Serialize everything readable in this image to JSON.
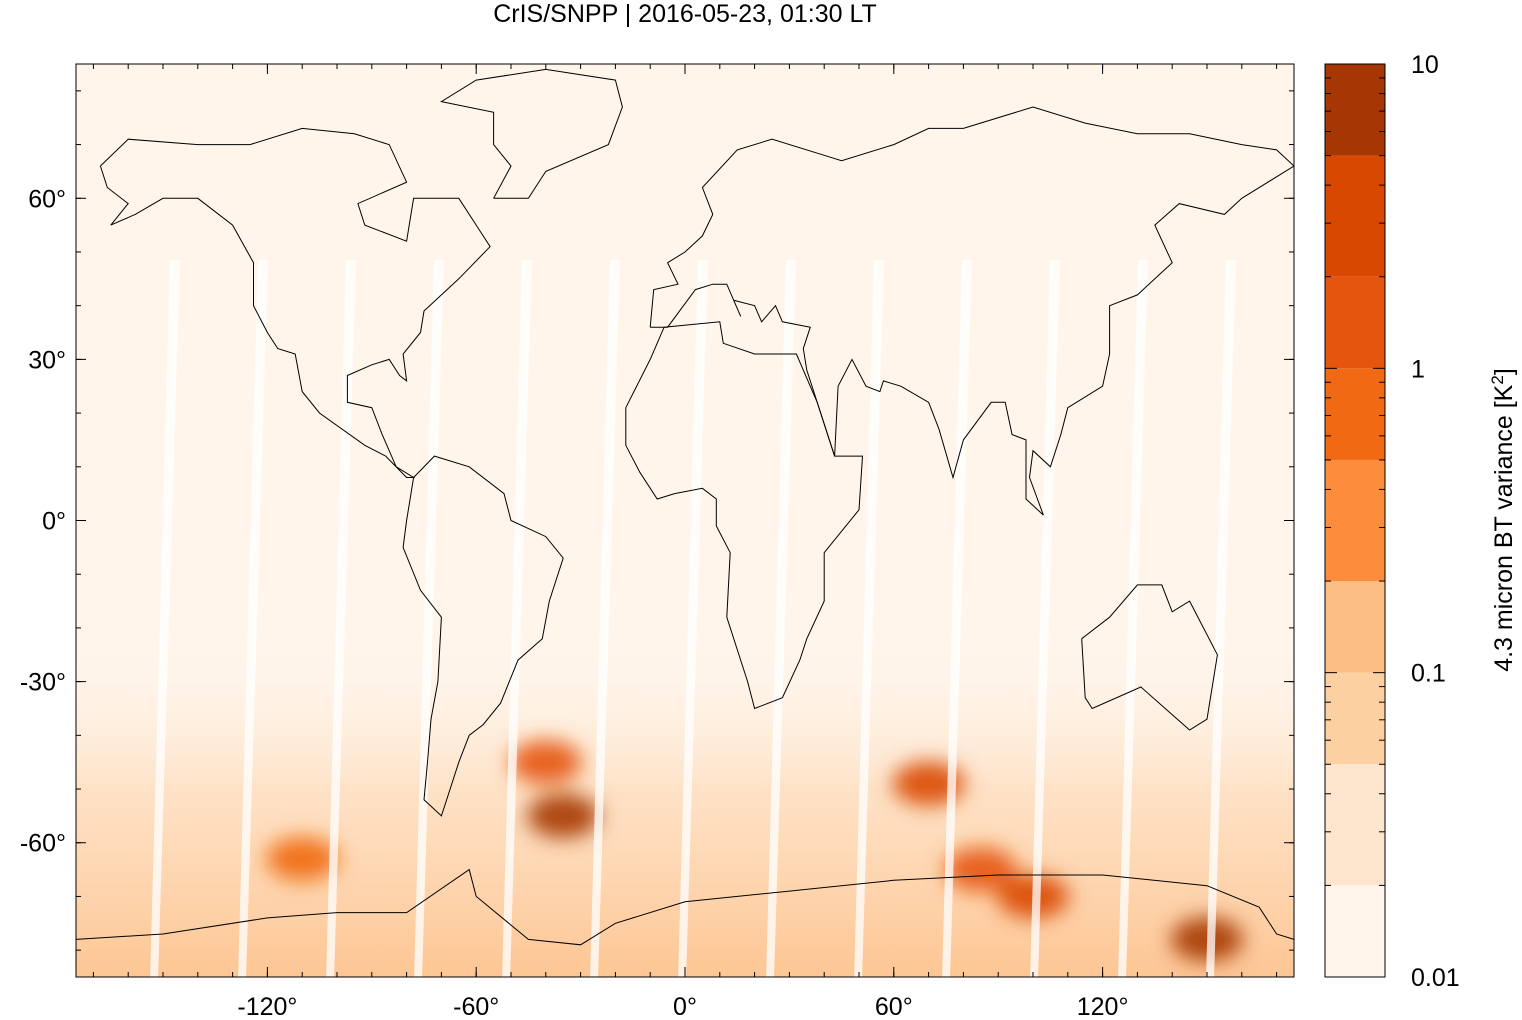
{
  "chart_data": {
    "type": "heatmap",
    "title": "CrIS/SNPP | 2016-05-23, 01:30 LT",
    "projection": "equirectangular",
    "xlim": [
      -175,
      175
    ],
    "ylim": [
      -85,
      85
    ],
    "x_ticks": [
      {
        "value": -120,
        "label": "-120°"
      },
      {
        "value": -60,
        "label": "-60°"
      },
      {
        "value": 0,
        "label": "0°"
      },
      {
        "value": 60,
        "label": "60°"
      },
      {
        "value": 120,
        "label": "120°"
      }
    ],
    "y_ticks": [
      {
        "value": 60,
        "label": "60°"
      },
      {
        "value": 30,
        "label": "30°"
      },
      {
        "value": 0,
        "label": "0°"
      },
      {
        "value": -30,
        "label": "-30°"
      },
      {
        "value": -60,
        "label": "-60°"
      }
    ],
    "colorbar": {
      "label": "4.3 micron BT variance [K",
      "label_superscript": "2",
      "label_close": "]",
      "scale": "log",
      "range": [
        0.01,
        10
      ],
      "levels": [
        0.01,
        0.02,
        0.05,
        0.1,
        0.2,
        0.5,
        1,
        2,
        5,
        10
      ],
      "colors": [
        "#fff5eb",
        "#fee6ce",
        "#fdd0a2",
        "#fdbe85",
        "#fd8d3c",
        "#f16913",
        "#e6550d",
        "#d94801",
        "#a63603",
        "#7f0000"
      ],
      "tick_labels": [
        {
          "value": 10,
          "label": "10"
        },
        {
          "value": 1,
          "label": "1"
        },
        {
          "value": 0.1,
          "label": "0.1"
        },
        {
          "value": 0.01,
          "label": "0.01"
        }
      ]
    },
    "hotspots": [
      {
        "lon": 150,
        "lat": -78,
        "value": 9
      },
      {
        "lon": -35,
        "lat": -55,
        "value": 5
      },
      {
        "lon": 70,
        "lat": -49,
        "value": 4
      },
      {
        "lon": 100,
        "lat": -70,
        "value": 2
      },
      {
        "lon": -40,
        "lat": -45,
        "value": 1.2
      },
      {
        "lon": -110,
        "lat": -63,
        "value": 0.8
      },
      {
        "lon": 85,
        "lat": -65,
        "value": 1.5
      }
    ]
  }
}
